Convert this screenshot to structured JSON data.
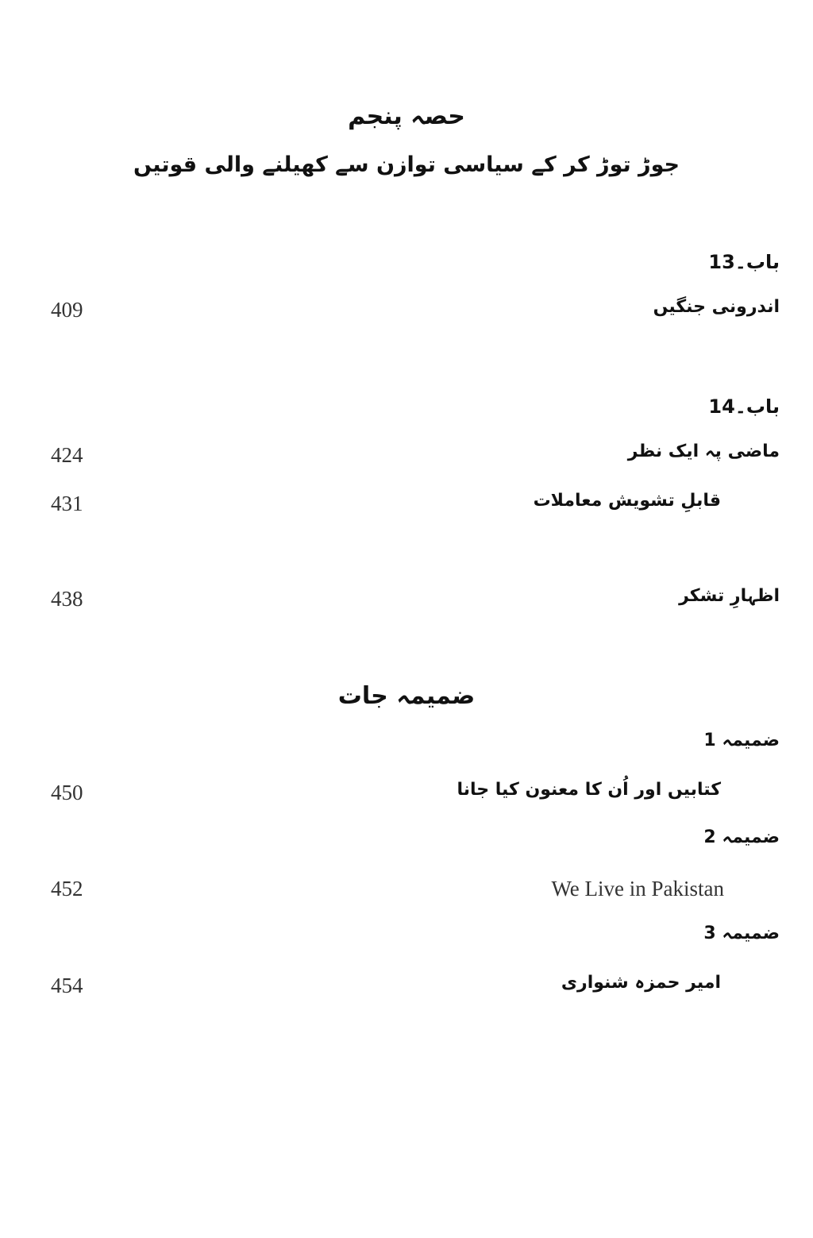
{
  "part": {
    "label": "حصہ پنجم",
    "title": "جوڑ توڑ کر کے سیاسی توازن سے کھیلنے والی قوتیں"
  },
  "entries": [
    {
      "heading": "باب۔13",
      "title": "اندرونی جنگیں",
      "page": "409"
    },
    {
      "heading": "باب۔14",
      "title": "ماضی پہ ایک نظر",
      "page": "424"
    },
    {
      "title": "قابلِ تشویش معاملات",
      "page": "431"
    },
    {
      "title": "اظہارِ تشکر",
      "page": "438"
    }
  ],
  "appendices": {
    "title": "ضمیمہ جات",
    "items": [
      {
        "heading": "ضمیمہ 1",
        "title": "کتابیں اور اُن کا معنون کیا جانا",
        "page": "450"
      },
      {
        "heading": "ضمیمہ 2",
        "title": "We Live in Pakistan",
        "page": "452"
      },
      {
        "heading": "ضمیمہ 3",
        "title": "امیر حمزہ شنواری",
        "page": "454"
      }
    ]
  }
}
